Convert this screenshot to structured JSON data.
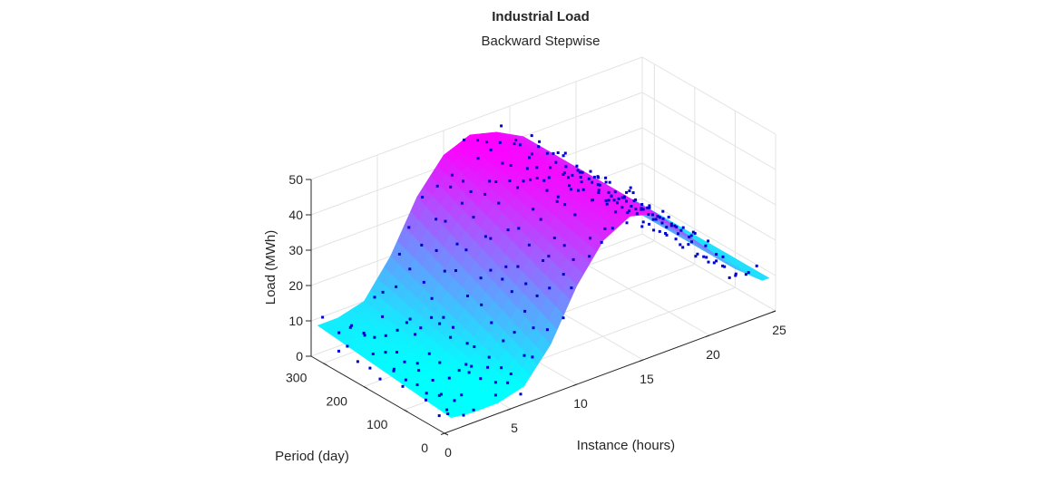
{
  "chart_data": {
    "type": "surface",
    "title": "Industrial Load",
    "subtitle": "Backward Stepwise",
    "xlabel": "Instance (hours)",
    "ylabel": "Period (day)",
    "zlabel": "Load (MWh)",
    "x_ticks": [
      "0",
      "5",
      "10",
      "15",
      "20",
      "25"
    ],
    "y_ticks": [
      "0",
      "100",
      "200",
      "300"
    ],
    "z_ticks": [
      "0",
      "10",
      "20",
      "30",
      "40",
      "50"
    ],
    "xlim": [
      0,
      25
    ],
    "ylim": [
      0,
      330
    ],
    "zlim": [
      0,
      50
    ],
    "grid": true,
    "colormap": [
      "#00ffff",
      "#ff00ff"
    ],
    "marker_color": "#0000cc",
    "surface_samples": {
      "hours": [
        0,
        2,
        4,
        6,
        8,
        10,
        12,
        14,
        16,
        18,
        20,
        22,
        24
      ],
      "load_at_day_0": [
        4,
        3,
        3,
        5,
        14,
        28,
        38,
        42,
        40,
        32,
        24,
        16,
        10
      ],
      "load_at_day_330": [
        8,
        8,
        10,
        20,
        34,
        43,
        46,
        44,
        40,
        32,
        24,
        16,
        10
      ]
    }
  }
}
